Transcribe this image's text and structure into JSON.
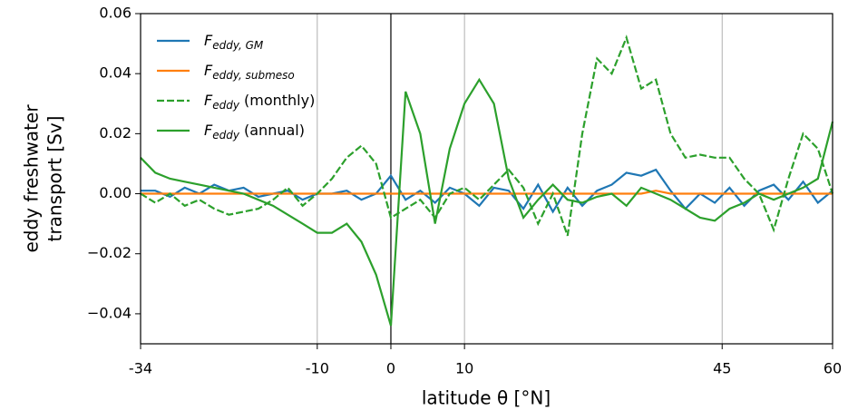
{
  "chart_data": {
    "type": "line",
    "xlabel": "latitude θ  [°N]",
    "ylabel_lines": [
      "eddy freshwater",
      "transport  [Sv]"
    ],
    "x": [
      -34,
      -32,
      -30,
      -28,
      -26,
      -24,
      -22,
      -20,
      -18,
      -16,
      -14,
      -12,
      -10,
      -8,
      -6,
      -4,
      -2,
      0,
      2,
      4,
      6,
      8,
      10,
      12,
      14,
      16,
      18,
      20,
      22,
      24,
      26,
      28,
      30,
      32,
      34,
      36,
      38,
      40,
      42,
      44,
      46,
      48,
      50,
      52,
      54,
      56,
      58,
      60
    ],
    "series": [
      {
        "name": "F",
        "name_subscript": "eddy, GM",
        "name_suffix": "",
        "color": "#1f77b4",
        "dash": false,
        "values": [
          0.001,
          0.001,
          -0.001,
          0.002,
          0.0,
          0.003,
          0.001,
          0.002,
          -0.001,
          0.0,
          0.001,
          -0.002,
          0.0,
          0.0,
          0.001,
          -0.002,
          0.0,
          0.006,
          -0.002,
          0.001,
          -0.003,
          0.002,
          0.0,
          -0.004,
          0.002,
          0.001,
          -0.005,
          0.003,
          -0.006,
          0.002,
          -0.004,
          0.001,
          0.003,
          0.007,
          0.006,
          0.008,
          0.001,
          -0.005,
          0.0,
          -0.003,
          0.002,
          -0.004,
          0.001,
          0.003,
          -0.002,
          0.004,
          -0.003,
          0.001
        ]
      },
      {
        "name": "F",
        "name_subscript": "eddy, submeso",
        "name_suffix": "",
        "color": "#ff7f0e",
        "dash": false,
        "values": [
          0.0,
          0.0,
          0.0,
          0.0,
          0.0,
          0.0,
          0.0,
          0.0,
          0.0,
          0.0,
          0.0,
          0.0,
          0.0,
          0.0,
          0.0,
          0.0,
          0.0,
          0.0,
          0.0,
          0.0,
          0.0,
          0.0,
          0.0,
          0.0,
          0.0,
          0.0,
          0.0,
          0.0,
          0.0,
          0.0,
          0.0,
          0.0,
          0.0,
          0.0,
          0.0,
          0.001,
          0.0,
          0.0,
          0.0,
          0.0,
          0.0,
          0.0,
          0.0,
          0.0,
          0.0,
          0.0,
          0.0,
          0.0
        ]
      },
      {
        "name": "F",
        "name_subscript": "eddy",
        "name_suffix": " (monthly)",
        "color": "#2ca02c",
        "dash": true,
        "values": [
          0.0,
          -0.003,
          0.0,
          -0.004,
          -0.002,
          -0.005,
          -0.007,
          -0.006,
          -0.005,
          -0.002,
          0.002,
          -0.004,
          0.0,
          0.005,
          0.012,
          0.016,
          0.01,
          -0.008,
          -0.005,
          -0.002,
          -0.008,
          0.0,
          0.002,
          -0.002,
          0.003,
          0.008,
          0.002,
          -0.01,
          0.0,
          -0.014,
          0.02,
          0.045,
          0.04,
          0.052,
          0.035,
          0.038,
          0.02,
          0.012,
          0.013,
          0.012,
          0.012,
          0.005,
          0.0,
          -0.012,
          0.005,
          0.02,
          0.015,
          0.0
        ]
      },
      {
        "name": "F",
        "name_subscript": "eddy",
        "name_suffix": " (annual)",
        "color": "#2ca02c",
        "dash": false,
        "values": [
          0.012,
          0.007,
          0.005,
          0.004,
          0.003,
          0.002,
          0.001,
          0.0,
          -0.002,
          -0.004,
          -0.007,
          -0.01,
          -0.013,
          -0.013,
          -0.01,
          -0.016,
          -0.027,
          -0.044,
          0.034,
          0.02,
          -0.01,
          0.015,
          0.03,
          0.038,
          0.03,
          0.005,
          -0.008,
          -0.002,
          0.003,
          -0.002,
          -0.003,
          -0.001,
          0.0,
          -0.004,
          0.002,
          0.0,
          -0.002,
          -0.005,
          -0.008,
          -0.009,
          -0.005,
          -0.003,
          0.0,
          -0.002,
          0.0,
          0.002,
          0.005,
          0.024
        ]
      }
    ],
    "xlim": [
      -34,
      60
    ],
    "xticks": [
      -34,
      -10,
      0,
      10,
      45,
      60
    ],
    "ylim": [
      -0.05,
      0.06
    ],
    "yticks": [
      {
        "value": -0.04,
        "label": "−0.04"
      },
      {
        "value": -0.02,
        "label": "−0.02"
      },
      {
        "value": 0,
        "label": "0.00"
      },
      {
        "value": 0.02,
        "label": "0.02"
      },
      {
        "value": 0.04,
        "label": "0.04"
      },
      {
        "value": 0.06,
        "label": "0.06"
      }
    ],
    "xgrid": true,
    "zero_line": 0,
    "legend": "upper left"
  }
}
